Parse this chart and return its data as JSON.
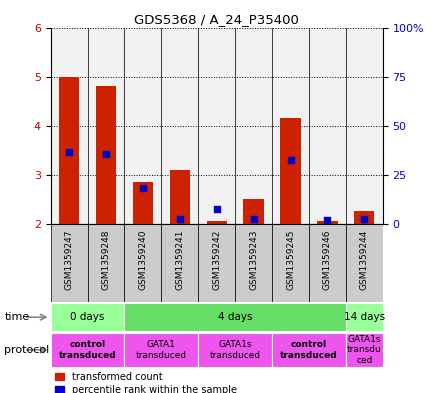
{
  "title": "GDS5368 / A_24_P35400",
  "samples": [
    "GSM1359247",
    "GSM1359248",
    "GSM1359240",
    "GSM1359241",
    "GSM1359242",
    "GSM1359243",
    "GSM1359245",
    "GSM1359246",
    "GSM1359244"
  ],
  "transformed_count": [
    5.0,
    4.8,
    2.85,
    3.1,
    2.05,
    2.5,
    4.15,
    2.05,
    2.25
  ],
  "percentile_rank": [
    3.45,
    3.42,
    2.72,
    2.1,
    2.3,
    2.1,
    3.3,
    2.08,
    2.1
  ],
  "ylim": [
    2.0,
    6.0
  ],
  "yticks_left": [
    2,
    3,
    4,
    5,
    6
  ],
  "right_tick_positions": [
    2,
    3,
    4,
    5,
    6
  ],
  "right_tick_labels": [
    "0",
    "25",
    "50",
    "75",
    "100%"
  ],
  "ylabel_left_color": "#cc0000",
  "ylabel_right_color": "#0000cc",
  "bar_bottom": 2.0,
  "bar_color": "#cc2200",
  "dot_color": "#0000cc",
  "dot_size": 25,
  "time_span_data": [
    [
      0,
      2,
      "0 days"
    ],
    [
      2,
      8,
      "4 days"
    ],
    [
      8,
      9,
      "14 days"
    ]
  ],
  "time_colors": [
    "#99ff99",
    "#66dd66",
    "#99ff99"
  ],
  "proto_span_data": [
    [
      0,
      2,
      "control\ntransduced",
      true
    ],
    [
      2,
      4,
      "GATA1\ntransduced",
      false
    ],
    [
      4,
      6,
      "GATA1s\ntransduced",
      false
    ],
    [
      6,
      8,
      "control\ntransduced",
      true
    ],
    [
      8,
      9,
      "GATA1s\ntransdu\nced",
      false
    ]
  ],
  "proto_color": "#ee55ee",
  "sample_bg": "#cccccc",
  "legend_labels": [
    "transformed count",
    "percentile rank within the sample"
  ]
}
